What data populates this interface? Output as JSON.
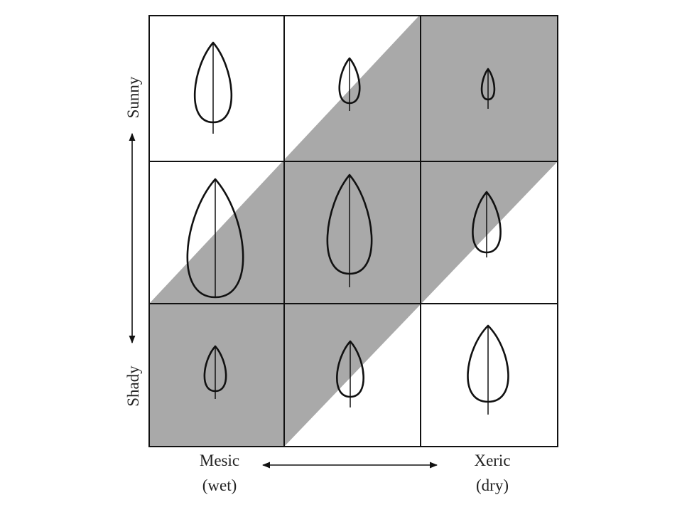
{
  "vertical_axis": {
    "top": "Sunny",
    "bottom": "Shady"
  },
  "horizontal_axis": {
    "left": [
      "Mesic",
      "(wet)"
    ],
    "right": [
      "Xeric",
      "(dry)"
    ]
  }
}
